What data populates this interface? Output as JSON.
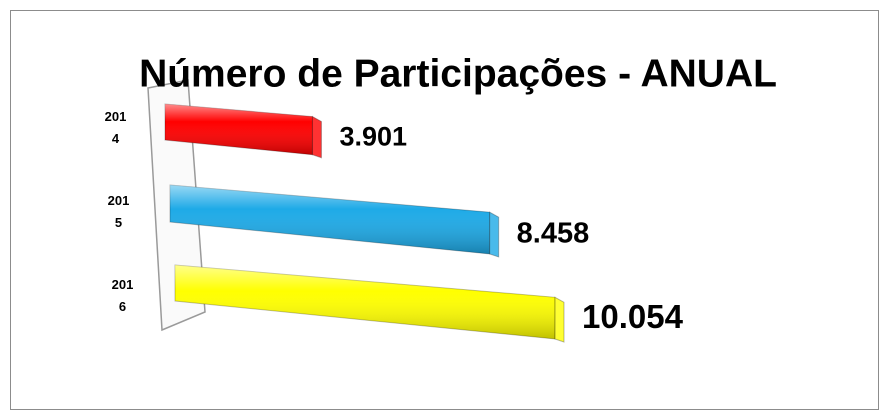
{
  "chart_data": {
    "type": "bar",
    "orientation": "horizontal",
    "title": "Número de Participações - ANUAL",
    "categories": [
      "2014",
      "2015",
      "2016"
    ],
    "values": [
      3901,
      8458,
      10054
    ],
    "value_labels": [
      "3.901",
      "8.458",
      "10.054"
    ],
    "colors": [
      "#ff0000",
      "#1eaae7",
      "#ffff00"
    ]
  }
}
